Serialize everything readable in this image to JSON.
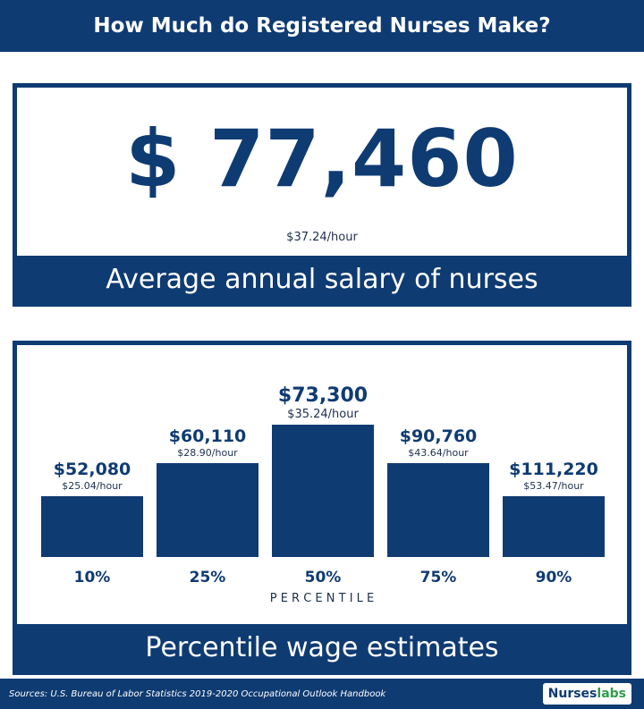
{
  "header": {
    "title": "How Much do Registered Nurses Make?"
  },
  "summary": {
    "annual_salary": "$ 77,460",
    "hourly": "$37.24/hour",
    "caption": "Average annual salary of nurses"
  },
  "chart_data": {
    "type": "bar",
    "categories": [
      "10%",
      "25%",
      "50%",
      "75%",
      "90%"
    ],
    "values": [
      52080,
      60110,
      73300,
      90760,
      111220
    ],
    "value_labels": [
      "$52,080",
      "$60,110",
      "$73,300",
      "$90,760",
      "$111,220"
    ],
    "hourly_labels": [
      "$25.04/hour",
      "$28.90/hour",
      "$35.24/hour",
      "$43.64/hour",
      "$53.47/hour"
    ],
    "xlabel": "P E R C E N T I L E",
    "caption": "Percentile wage estimates",
    "bar_color": "#0f3b73"
  },
  "footer": {
    "sources": "Sources: U.S. Bureau of Labor Statistics 2019-2020 Occupational Outlook Handbook",
    "logo_main": "Nurses",
    "logo_accent": "labs"
  }
}
